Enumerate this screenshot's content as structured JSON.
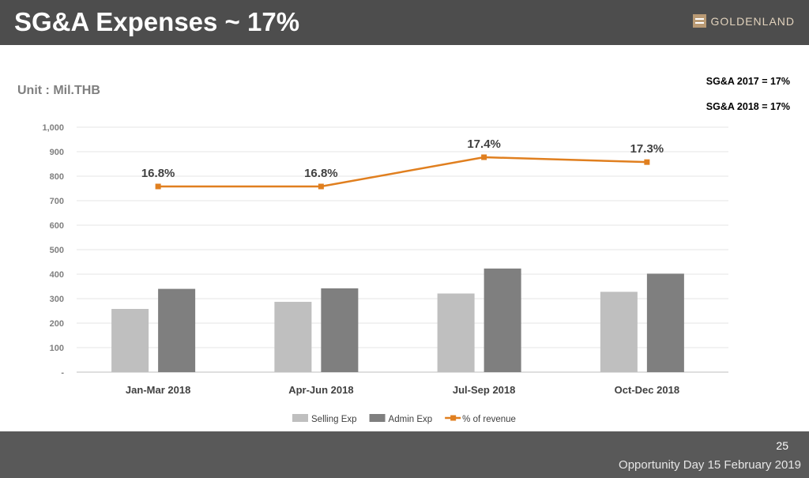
{
  "slide": {
    "title": "SG&A Expenses ~ 17%",
    "logo_text": "GOLDENLAND",
    "unit": "Unit : Mil.THB",
    "notes": [
      "SG&A 2017 = 17%",
      "SG&A 2018 = 17%"
    ],
    "page_number": "25",
    "footer": "Opportunity Day 15 February 2019"
  },
  "chart_data": {
    "type": "bar",
    "categories": [
      "Jan-Mar 2018",
      "Apr-Jun 2018",
      "Jul-Sep 2018",
      "Oct-Dec 2018"
    ],
    "series": [
      {
        "name": "Selling Exp",
        "type": "bar",
        "color": "#bfbfbf",
        "values": [
          258,
          287,
          321,
          328
        ]
      },
      {
        "name": "Admin Exp",
        "type": "bar",
        "color": "#7f7f7f",
        "values": [
          340,
          342,
          423,
          402
        ]
      },
      {
        "name": "% of revenue",
        "type": "line",
        "color": "#e07f1f",
        "values": [
          16.8,
          16.8,
          17.4,
          17.3
        ],
        "labels": [
          "16.8%",
          "16.8%",
          "17.4%",
          "17.3%"
        ]
      }
    ],
    "ylim": [
      0,
      1000
    ],
    "yticks": [
      0,
      100,
      200,
      300,
      400,
      500,
      600,
      700,
      800,
      900,
      1000
    ],
    "ytick_labels": [
      "-",
      "100",
      "200",
      "300",
      "400",
      "500",
      "600",
      "700",
      "800",
      "900",
      "1,000"
    ],
    "grid": true,
    "legend_position": "bottom"
  }
}
